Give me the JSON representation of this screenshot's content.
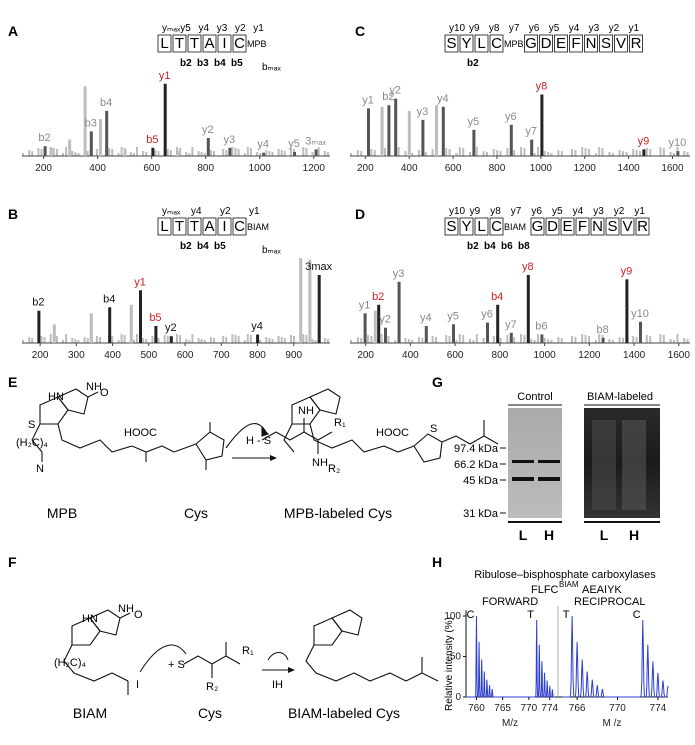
{
  "colors": {
    "red": "#cc2222",
    "gray": "#8a8a8a",
    "light": "#bdbdbd",
    "dark": "#333333",
    "blue": "#2f3fd0"
  },
  "panels": {
    "A": {
      "letter": "A",
      "residues": [
        "L",
        "T",
        "T",
        "A",
        "I",
        "C"
      ],
      "mod": "MPB",
      "top_ions": [
        "yₘₐₓ",
        "y5",
        "y4",
        "y3",
        "y2",
        "y1"
      ],
      "bottom_ions": [
        "b2",
        "b3",
        "b4",
        "b5"
      ],
      "bmax": "bₘₐₓ",
      "axis": [
        "200",
        "400",
        "600",
        "800",
        "1000",
        "1200"
      ],
      "labels": [
        {
          "t": "b2",
          "c": "gray"
        },
        {
          "t": "b3",
          "c": "gray"
        },
        {
          "t": "b4",
          "c": "gray"
        },
        {
          "t": "y1",
          "c": "red"
        },
        {
          "t": "b5",
          "c": "red"
        },
        {
          "t": "y2",
          "c": "gray"
        },
        {
          "t": "y3",
          "c": "gray"
        },
        {
          "t": "y4",
          "c": "gray"
        },
        {
          "t": "y5",
          "c": "gray"
        },
        {
          "t": "bₘₐ₂",
          "c": "red"
        },
        {
          "t": "3ₘₐₓ",
          "c": "gray"
        }
      ]
    },
    "B": {
      "letter": "B",
      "residues": [
        "L",
        "T",
        "T",
        "A",
        "I",
        "C"
      ],
      "mod": "BIAM",
      "top_ions": [
        "yₘₐₓ",
        "y4",
        "y2",
        "y1"
      ],
      "bottom_ions": [
        "b2",
        "b4",
        "b5"
      ],
      "bmax": "bₘₐₓ",
      "axis": [
        "200",
        "300",
        "400",
        "500",
        "600",
        "700",
        "800",
        "900"
      ],
      "labels": [
        {
          "t": "b2",
          "c": "dark"
        },
        {
          "t": "b4",
          "c": "dark"
        },
        {
          "t": "y1",
          "c": "red"
        },
        {
          "t": "b5",
          "c": "red"
        },
        {
          "t": "y2",
          "c": "dark"
        },
        {
          "t": "y4",
          "c": "dark"
        },
        {
          "t": "bₘₐ₂",
          "c": "red"
        },
        {
          "t": "3max",
          "c": "dark"
        }
      ]
    },
    "C": {
      "letter": "C",
      "residues_a": [
        "S",
        "Y",
        "L",
        "C"
      ],
      "mod": "MPB",
      "residues_b": [
        "G",
        "D",
        "E",
        "F",
        "N",
        "S",
        "V",
        "R"
      ],
      "top_ions": [
        "y10",
        "y9",
        "y8",
        "y7",
        "y6",
        "y5",
        "y4",
        "y3",
        "y2",
        "y1"
      ],
      "bottom_ions": [
        "b2"
      ],
      "axis": [
        "200",
        "400",
        "600",
        "800",
        "1000",
        "1200",
        "1400",
        "1600"
      ],
      "labels": [
        {
          "t": "b2",
          "c": "gray"
        },
        {
          "t": "y2",
          "c": "gray"
        },
        {
          "t": "y1",
          "c": "gray"
        },
        {
          "t": "y3",
          "c": "gray"
        },
        {
          "t": "y4",
          "c": "gray"
        },
        {
          "t": "y5",
          "c": "gray"
        },
        {
          "t": "y6",
          "c": "gray"
        },
        {
          "t": "y7",
          "c": "gray"
        },
        {
          "t": "y8",
          "c": "red"
        },
        {
          "t": "y9",
          "c": "red"
        },
        {
          "t": "y10",
          "c": "gray"
        }
      ]
    },
    "D": {
      "letter": "D",
      "residues_a": [
        "S",
        "Y",
        "L",
        "C"
      ],
      "mod": "BIAM",
      "residues_b": [
        "G",
        "D",
        "E",
        "F",
        "N",
        "S",
        "V",
        "R"
      ],
      "top_ions": [
        "y10",
        "y9",
        "y8",
        "y7",
        "y6",
        "y5",
        "y4",
        "y3",
        "y2",
        "y1"
      ],
      "bottom_ions": [
        "b2",
        "b4",
        "b6",
        "b8"
      ],
      "axis": [
        "200",
        "400",
        "600",
        "800",
        "1000",
        "1200",
        "1400",
        "1600"
      ],
      "labels": [
        {
          "t": "y1",
          "c": "gray"
        },
        {
          "t": "b2",
          "c": "red"
        },
        {
          "t": "y2",
          "c": "gray"
        },
        {
          "t": "y3",
          "c": "gray"
        },
        {
          "t": "y4",
          "c": "gray"
        },
        {
          "t": "y5",
          "c": "gray"
        },
        {
          "t": "y6",
          "c": "gray"
        },
        {
          "t": "b4",
          "c": "red"
        },
        {
          "t": "y7",
          "c": "gray"
        },
        {
          "t": "y8",
          "c": "red"
        },
        {
          "t": "b6",
          "c": "gray"
        },
        {
          "t": "b8",
          "c": "gray"
        },
        {
          "t": "y9",
          "c": "red"
        },
        {
          "t": "y10",
          "c": "gray"
        }
      ]
    },
    "E": {
      "letter": "E",
      "captions": [
        "MPB",
        "Cys",
        "MPB-labeled Cys"
      ],
      "atoms": [
        "HN",
        "NH",
        "O",
        "S",
        "(H₂C)₄",
        "HOOC",
        "N",
        "H",
        "O",
        "O",
        "NH",
        "O",
        "R₁",
        "H",
        "S",
        "NH",
        "R₂"
      ]
    },
    "F": {
      "letter": "F",
      "captions": [
        "BIAM",
        "Cys",
        "BIAM-labeled Cys"
      ],
      "atoms": [
        "HN",
        "NH",
        "O",
        "S",
        "(H₂C)₄",
        "H",
        "O",
        "I",
        "R₁",
        "R₂",
        "IH"
      ]
    },
    "G": {
      "letter": "G",
      "headers": [
        "Control",
        "BIAM-labeled"
      ],
      "markers": [
        "97.4 kDa",
        "66.2 kDa",
        "45 kDa",
        "31 kDa"
      ],
      "lanes": [
        "L",
        "H",
        "L",
        "H"
      ]
    },
    "H": {
      "letter": "H",
      "title": "Ribulose–bisphosphate carboxylases",
      "peptide_pre": "FLFC",
      "peptide_sup": "BIAM",
      "peptide_post": "AEAIYK",
      "forward": "FORWARD",
      "reciprocal": "RECIPROCAL",
      "ylabel": "Relative intensity (%)",
      "yticks": [
        "0",
        "50",
        "100"
      ],
      "left_xticks": [
        "760",
        "765",
        "770",
        "774"
      ],
      "right_xticks": [
        "766",
        "770",
        "774"
      ],
      "left_xlabel": "M/z",
      "right_xlabel": "M   /z",
      "left_tags": [
        "C",
        "T"
      ],
      "right_tags": [
        "T",
        "C"
      ]
    }
  }
}
